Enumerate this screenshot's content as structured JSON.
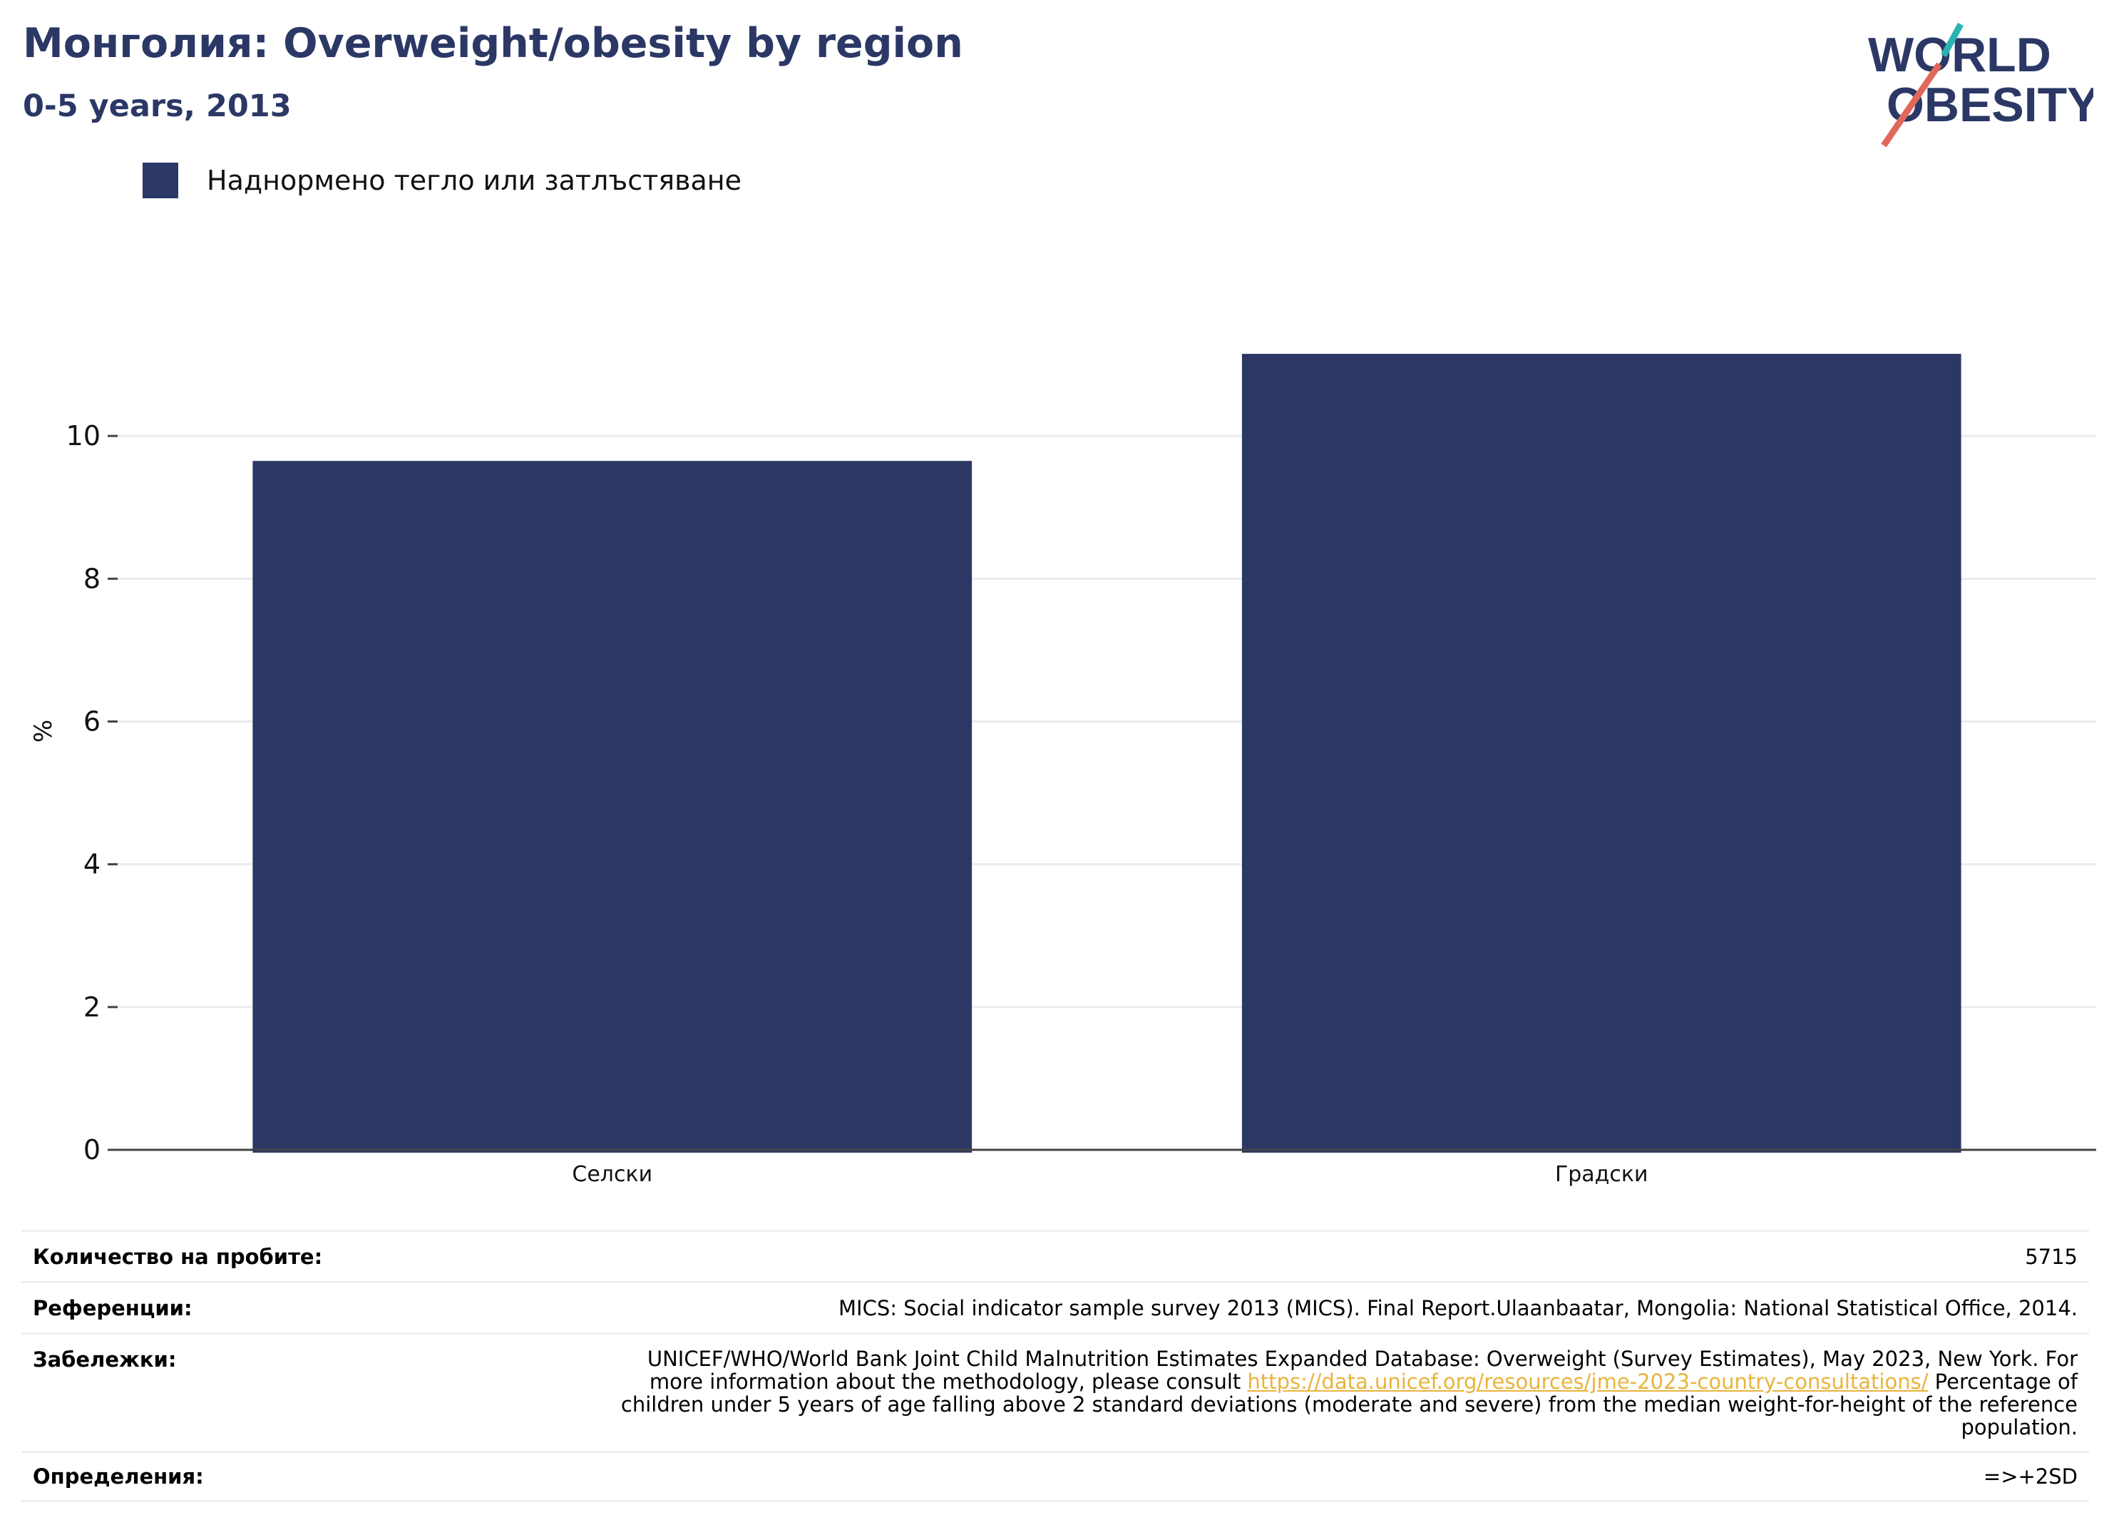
{
  "header": {
    "title": "Монголия: Overweight/obesity by region",
    "subtitle": "0-5 years, 2013"
  },
  "logo": {
    "line1": "WORLD",
    "line2": "OBESITY"
  },
  "legend": {
    "label": "Наднормено тегло или затлъстяване"
  },
  "colors": {
    "bar": "#2b3866",
    "title": "#2b3866",
    "grid": "#e9ecf1",
    "link": "#e8b43b"
  },
  "chart_data": {
    "type": "bar",
    "categories": [
      "Селски",
      "Градски"
    ],
    "series": [
      {
        "name": "Наднормено тегло или затлъстяване",
        "values": [
          9.65,
          11.15
        ]
      }
    ],
    "ylabel": "%",
    "ylim": [
      0,
      12
    ],
    "yticks": [
      0,
      2,
      4,
      6,
      8,
      10
    ],
    "grid": true,
    "legend_position": "top-left"
  },
  "info": {
    "sample_label": "Количество на пробите:",
    "sample_value": "5715",
    "references_label": "Референции:",
    "references_value": "MICS: Social indicator sample survey 2013 (MICS). Final Report.Ulaanbaatar, Mongolia: National Statistical Office, 2014.",
    "notes_label": "Забележки:",
    "notes_line1": "UNICEF/WHO/World Bank Joint Child Malnutrition Estimates Expanded Database: Overweight (Survey Estimates), May 2023, New York. For",
    "notes_line2_pre": "more information about the methodology, please consult ",
    "notes_link": "https://data.unicef.org/resources/jme-2023-country-consultations/",
    "notes_line2_post": " Percentage of",
    "notes_line3": "children under 5 years of age falling above 2 standard deviations (moderate and severe) from the median weight-for-height of the reference",
    "notes_line4": "population.",
    "definitions_label": "Определения:",
    "definitions_value": "=>+2SD"
  }
}
